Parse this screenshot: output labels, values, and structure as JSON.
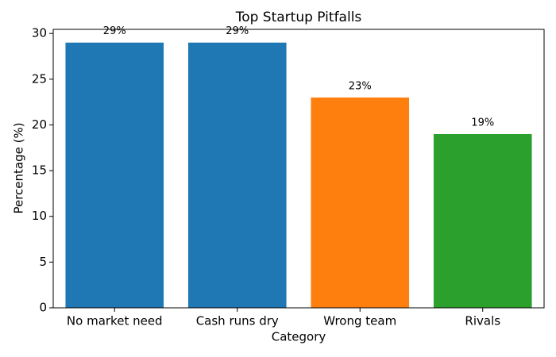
{
  "chart_data": {
    "type": "bar",
    "title": "Top Startup Pitfalls",
    "xlabel": "Category",
    "ylabel": "Percentage (%)",
    "categories": [
      "No market need",
      "Cash runs dry",
      "Wrong team",
      "Rivals"
    ],
    "values": [
      29,
      29,
      23,
      19
    ],
    "value_labels": [
      "29%",
      "29%",
      "23%",
      "19%"
    ],
    "colors": [
      "#1f77b4",
      "#1f77b4",
      "#ff7f0e",
      "#2ca02c"
    ],
    "ylim": [
      0,
      30.45
    ],
    "yticks": [
      0,
      5,
      10,
      15,
      20,
      25,
      30
    ],
    "grid": false
  }
}
